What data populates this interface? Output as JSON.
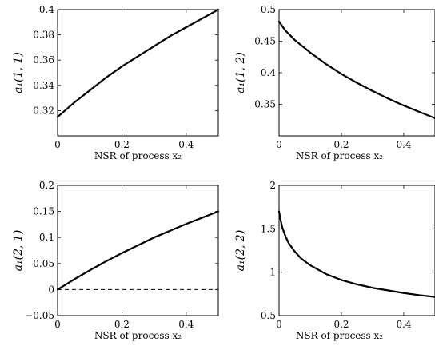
{
  "chart_data": [
    {
      "type": "line",
      "xlabel": "NSR of process x₂",
      "ylabel": "a₁(1, 1)",
      "xlim": [
        0,
        0.5
      ],
      "ylim": [
        0.3,
        0.4
      ],
      "xticks": [
        0,
        0.2,
        0.4
      ],
      "xtick_labels": [
        "0",
        "0.2",
        "0.4"
      ],
      "yticks": [
        0.32,
        0.34,
        0.36,
        0.38,
        0.4
      ],
      "ytick_labels": [
        "0.32",
        "0.34",
        "0.36",
        "0.38",
        "0.4"
      ],
      "grid": false,
      "series": [
        {
          "x": [
            0,
            0.05,
            0.1,
            0.15,
            0.2,
            0.25,
            0.3,
            0.35,
            0.4,
            0.45,
            0.5
          ],
          "y": [
            0.315,
            0.326,
            0.336,
            0.346,
            0.355,
            0.363,
            0.371,
            0.379,
            0.386,
            0.393,
            0.4
          ]
        }
      ]
    },
    {
      "type": "line",
      "xlabel": "NSR of process x₂",
      "ylabel": "a₁(1, 2)",
      "xlim": [
        0,
        0.5
      ],
      "ylim": [
        0.3,
        0.5
      ],
      "xticks": [
        0,
        0.2,
        0.4
      ],
      "xtick_labels": [
        "0",
        "0.2",
        "0.4"
      ],
      "yticks": [
        0.35,
        0.4,
        0.45,
        0.5
      ],
      "ytick_labels": [
        "0.35",
        "0.4",
        "0.45",
        "0.5"
      ],
      "grid": false,
      "series": [
        {
          "x": [
            0,
            0.02,
            0.05,
            0.1,
            0.15,
            0.2,
            0.25,
            0.3,
            0.35,
            0.4,
            0.45,
            0.5
          ],
          "y": [
            0.481,
            0.467,
            0.452,
            0.432,
            0.414,
            0.398,
            0.384,
            0.371,
            0.359,
            0.348,
            0.338,
            0.328
          ]
        }
      ]
    },
    {
      "type": "line",
      "xlabel": "NSR of process x₂",
      "ylabel": "a₁(2, 1)",
      "xlim": [
        0,
        0.5
      ],
      "ylim": [
        -0.05,
        0.2
      ],
      "xticks": [
        0,
        0.2,
        0.4
      ],
      "xtick_labels": [
        "0",
        "0.2",
        "0.4"
      ],
      "yticks": [
        -0.05,
        0,
        0.05,
        0.1,
        0.15,
        0.2
      ],
      "ytick_labels": [
        "−0.05",
        "0",
        "0.05",
        "0.1",
        "0.15",
        "0.2"
      ],
      "grid": false,
      "reference_line": {
        "y": 0,
        "style": "dashed"
      },
      "series": [
        {
          "x": [
            0,
            0.05,
            0.1,
            0.15,
            0.2,
            0.25,
            0.3,
            0.35,
            0.4,
            0.45,
            0.5
          ],
          "y": [
            0,
            0.019,
            0.037,
            0.054,
            0.07,
            0.085,
            0.1,
            0.113,
            0.126,
            0.138,
            0.15
          ]
        }
      ]
    },
    {
      "type": "line",
      "xlabel": "NSR of process x₂",
      "ylabel": "a₁(2, 2)",
      "xlim": [
        0,
        0.5
      ],
      "ylim": [
        0.5,
        2
      ],
      "xticks": [
        0,
        0.2,
        0.4
      ],
      "xtick_labels": [
        "0",
        "0.2",
        "0.4"
      ],
      "yticks": [
        0.5,
        1,
        1.5,
        2
      ],
      "ytick_labels": [
        "0.5",
        "1",
        "1.5",
        "2"
      ],
      "grid": false,
      "series": [
        {
          "x": [
            0,
            0.005,
            0.01,
            0.02,
            0.03,
            0.05,
            0.07,
            0.1,
            0.15,
            0.2,
            0.25,
            0.3,
            0.35,
            0.4,
            0.45,
            0.5
          ],
          "y": [
            1.7,
            1.6,
            1.52,
            1.42,
            1.34,
            1.24,
            1.16,
            1.08,
            0.98,
            0.91,
            0.86,
            0.82,
            0.79,
            0.76,
            0.735,
            0.715
          ]
        }
      ]
    }
  ]
}
